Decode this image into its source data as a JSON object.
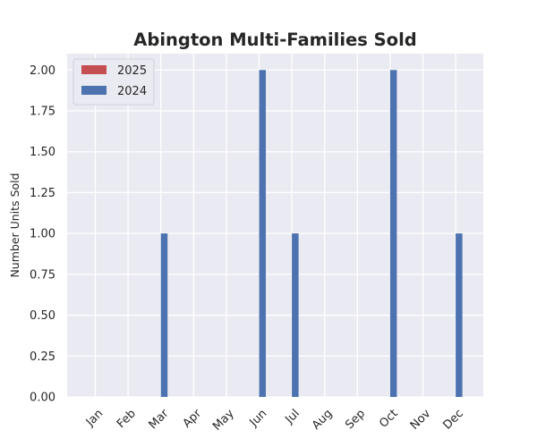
{
  "chart_data": {
    "type": "bar",
    "title": "Abington Multi-Families Sold",
    "xlabel": "",
    "ylabel": "Number Units Sold",
    "categories": [
      "Jan",
      "Feb",
      "Mar",
      "Apr",
      "May",
      "Jun",
      "Jul",
      "Aug",
      "Sep",
      "Oct",
      "Nov",
      "Dec"
    ],
    "series": [
      {
        "name": "2025",
        "color": "#c44e52",
        "values": [
          0,
          0,
          0,
          0,
          0,
          0,
          0,
          0,
          0,
          0,
          0,
          0
        ]
      },
      {
        "name": "2024",
        "color": "#4c72b0",
        "values": [
          0,
          0,
          1,
          0,
          0,
          2,
          1,
          0,
          0,
          2,
          0,
          1
        ]
      }
    ],
    "yticks": [
      "0.00",
      "0.25",
      "0.50",
      "0.75",
      "1.00",
      "1.25",
      "1.50",
      "1.75",
      "2.00"
    ],
    "ylim": [
      0,
      2.1
    ],
    "grid": true,
    "legend_position": "top-left",
    "background_color": "#eaeaf2",
    "grid_color": "#ffffff"
  }
}
